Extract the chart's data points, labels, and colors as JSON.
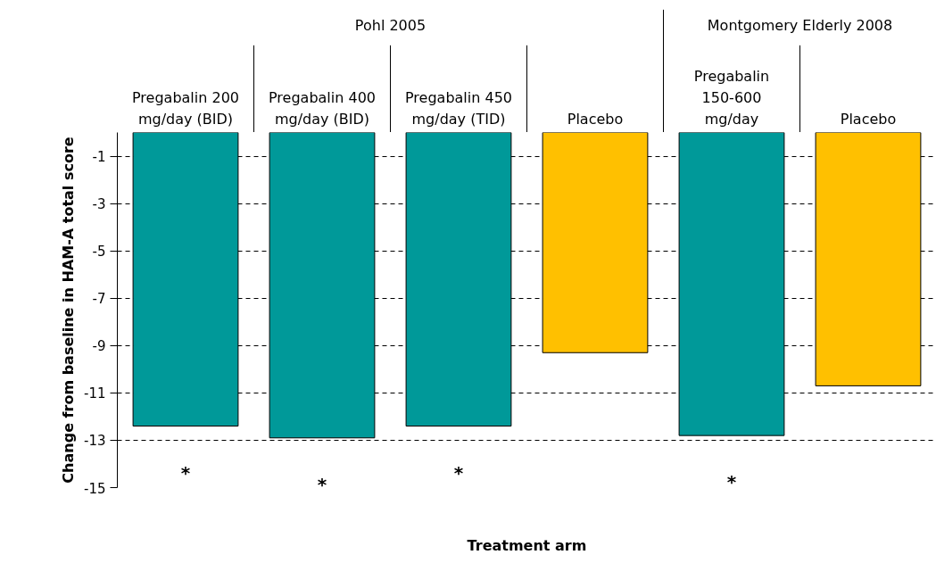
{
  "chart_data": {
    "type": "bar",
    "xlabel": "Treatment arm",
    "ylabel": "Change from baseline in HAM-A total score",
    "categories": [
      "Pregabalin 200\nmg/day (BID)",
      "Pregabalin 400\nmg/day (BID)",
      "Pregabalin 450\nmg/day (TID)",
      "Placebo",
      "Pregabalin\n150-600\nmg/day",
      "Placebo"
    ],
    "values": [
      -12.4,
      -12.9,
      -12.4,
      -9.3,
      -12.8,
      -10.7
    ],
    "colors": [
      "#009999",
      "#009999",
      "#009999",
      "#ffc000",
      "#009999",
      "#ffc000"
    ],
    "ylim": [
      -15,
      0
    ],
    "yticks": [
      -1,
      -3,
      -5,
      -7,
      -9,
      -11,
      -13,
      -15
    ],
    "grid": "y",
    "value_labels": [
      "*",
      "*",
      "*",
      null,
      "*",
      null
    ],
    "annotations": [
      "Pohl 2005",
      "Montgomery Elderly 2008"
    ]
  }
}
